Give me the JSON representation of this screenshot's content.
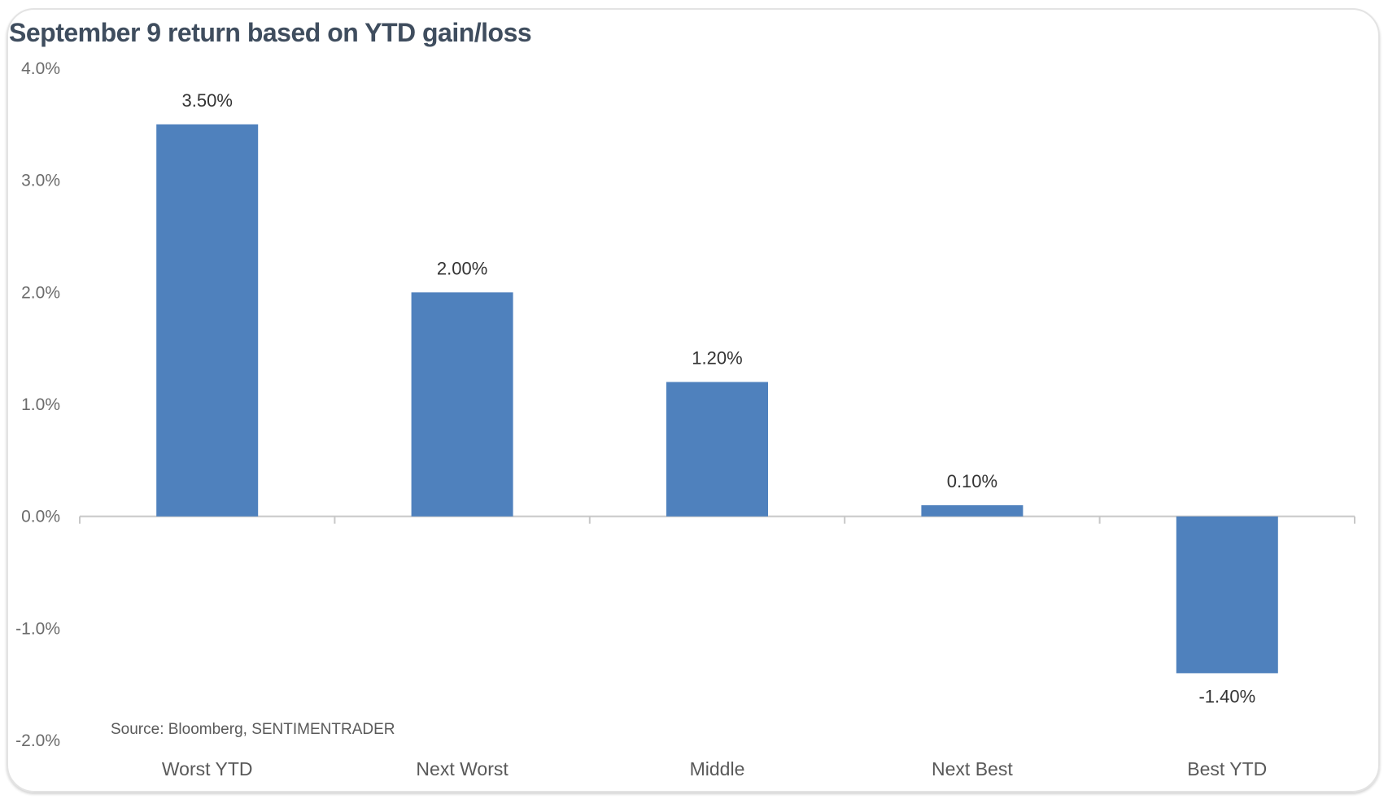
{
  "chart_data": {
    "type": "bar",
    "title": "September 9 return based on YTD gain/loss",
    "categories": [
      "Worst YTD",
      "Next Worst",
      "Middle",
      "Next Best",
      "Best YTD"
    ],
    "values": [
      3.5,
      2.0,
      1.2,
      0.1,
      -1.4
    ],
    "data_labels": [
      "3.50%",
      "2.00%",
      "1.20%",
      "0.10%",
      "-1.40%"
    ],
    "xlabel": "",
    "ylabel": "",
    "ylim": [
      -2.0,
      4.0
    ],
    "yticks": [
      4.0,
      3.0,
      2.0,
      1.0,
      0.0,
      -1.0,
      -2.0
    ],
    "ytick_labels": [
      "4.0%",
      "3.0%",
      "2.0%",
      "1.0%",
      "0.0%",
      "-1.0%",
      "-2.0%"
    ],
    "grid": false,
    "bar_color": "#4f81bd",
    "source": "Source:  Bloomberg,  SENTIMENTRADER"
  }
}
